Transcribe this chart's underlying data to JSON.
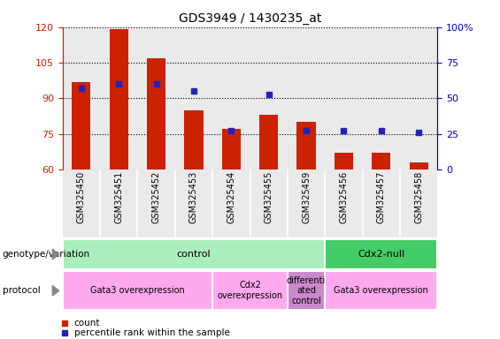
{
  "title": "GDS3949 / 1430235_at",
  "samples": [
    "GSM325450",
    "GSM325451",
    "GSM325452",
    "GSM325453",
    "GSM325454",
    "GSM325455",
    "GSM325459",
    "GSM325456",
    "GSM325457",
    "GSM325458"
  ],
  "counts": [
    97,
    119,
    107,
    85,
    77,
    83,
    80,
    67,
    67,
    63
  ],
  "percentile_ranks": [
    57,
    60,
    60,
    55,
    27,
    53,
    27,
    27,
    27,
    26
  ],
  "ylim_left": [
    60,
    120
  ],
  "ylim_right": [
    0,
    100
  ],
  "yticks_left": [
    60,
    75,
    90,
    105,
    120
  ],
  "yticks_right": [
    0,
    25,
    50,
    75,
    100
  ],
  "bar_color": "#cc2200",
  "dot_color": "#2222bb",
  "bar_bottom": 60,
  "genotype_groups": [
    {
      "label": "control",
      "start": 0,
      "end": 7,
      "color": "#aaeebb"
    },
    {
      "label": "Cdx2-null",
      "start": 7,
      "end": 10,
      "color": "#44cc66"
    }
  ],
  "protocol_groups": [
    {
      "label": "Gata3 overexpression",
      "start": 0,
      "end": 4,
      "color": "#ffaaee"
    },
    {
      "label": "Cdx2\noverexpression",
      "start": 4,
      "end": 6,
      "color": "#ffaaee"
    },
    {
      "label": "differenti\nated\ncontrol",
      "start": 6,
      "end": 7,
      "color": "#cc88cc"
    },
    {
      "label": "Gata3 overexpression",
      "start": 7,
      "end": 10,
      "color": "#ffaaee"
    }
  ],
  "legend_count_label": "count",
  "legend_pct_label": "percentile rank within the sample",
  "left_label": "genotype/variation",
  "protocol_label": "protocol",
  "tick_color_left": "#cc2200",
  "tick_color_right": "#0000cc",
  "bg_color": "#ffffff",
  "bar_width": 0.5,
  "col_bg_color": "#cccccc",
  "col_bg_alpha": 0.4
}
